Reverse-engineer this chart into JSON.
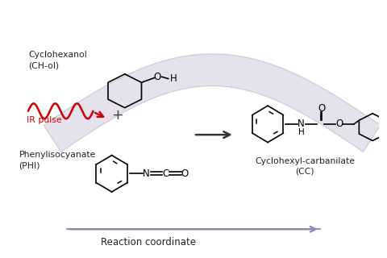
{
  "background_color": "#ffffff",
  "rc_label": "Reaction coordinate",
  "ir_pulse_color": "#cc0000",
  "ir_label": "IR pulse",
  "label_cyclohexanol": "Cyclohexanol\n(CH-ol)",
  "label_phi": "Phenylisocyanate\n(PHI)",
  "label_cc": "Cyclohexyl-carbanilate\n(CC)",
  "wave_color": "#ddd8e8",
  "wave_alpha": 0.75,
  "ribbon_edge_color": "#c0b8d0",
  "text_color": "#222222",
  "arrow_color": "#333333",
  "rc_arrow_color": "#8888bb"
}
